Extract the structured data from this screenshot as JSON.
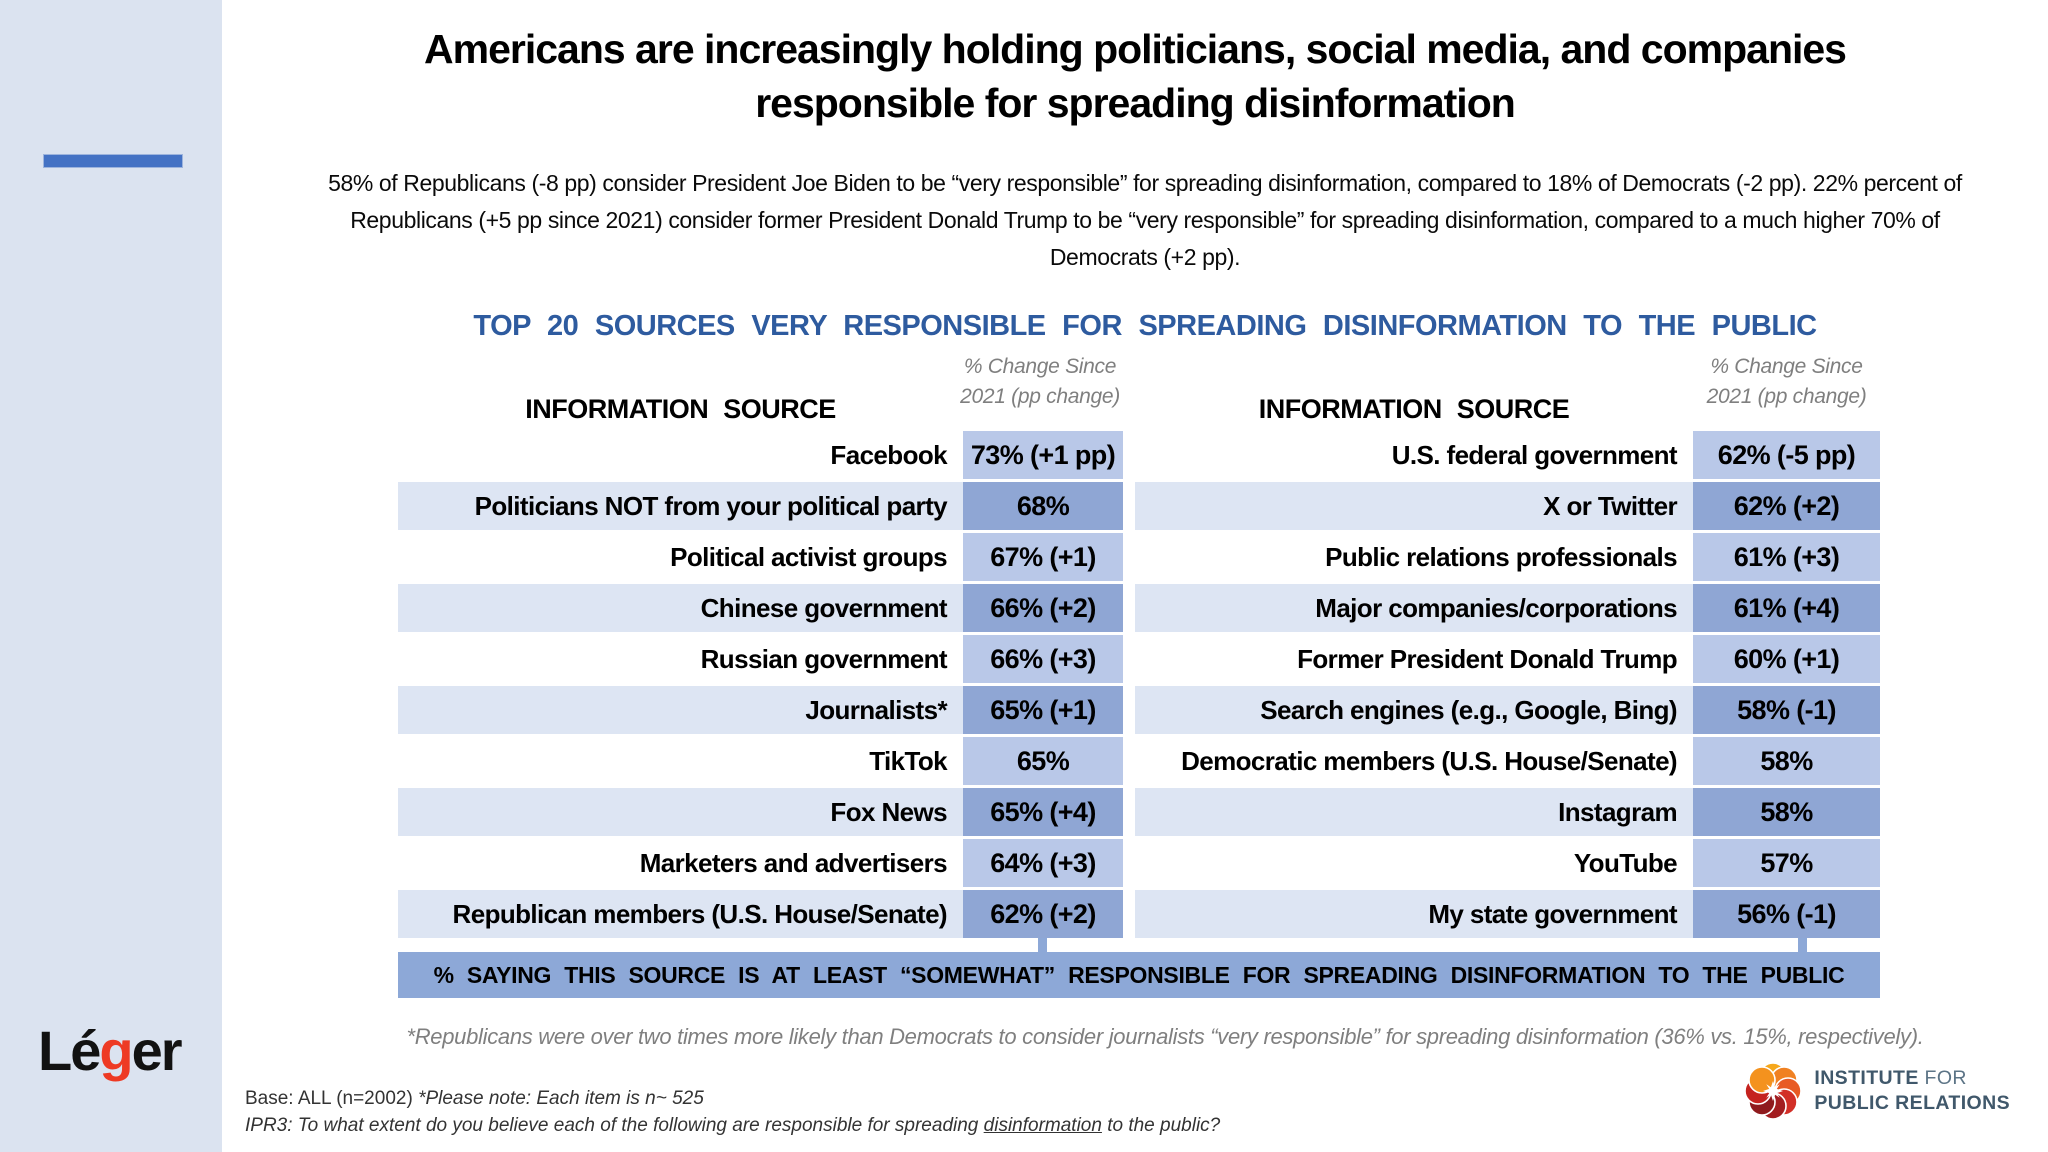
{
  "header": {
    "title_line1": "Americans are increasingly holding politicians, social media, and companies",
    "title_line2": "responsible for spreading disinformation",
    "subtitle": "58% of Republicans (-8 pp) consider President Joe Biden to be “very responsible” for spreading disinformation, compared to 18% of Democrats (-2 pp). 22% percent of Republicans (+5 pp since 2021) consider former President Donald Trump to be “very responsible” for spreading disinformation, compared to a much higher 70% of Democrats (+2 pp)."
  },
  "section": {
    "title": "TOP 20 SOURCES VERY RESPONSIBLE FOR SPREADING DISINFORMATION TO THE PUBLIC"
  },
  "table_headers": {
    "information_source": "INFORMATION SOURCE",
    "pct_change_line1": "% Change Since",
    "pct_change_line2": "2021 (pp change)"
  },
  "chart_data": {
    "type": "table",
    "title": "TOP 20 SOURCES VERY RESPONSIBLE FOR SPREADING DISINFORMATION TO THE PUBLIC",
    "columns": [
      "INFORMATION SOURCE",
      "% Change Since 2021 (pp change)"
    ],
    "left_rows": [
      {
        "source": "Facebook",
        "pct": 73,
        "change_pp": 1,
        "display": "73% (+1 pp)"
      },
      {
        "source": "Politicians NOT from your political party",
        "pct": 68,
        "change_pp": null,
        "display": "68%"
      },
      {
        "source": "Political activist groups",
        "pct": 67,
        "change_pp": 1,
        "display": "67% (+1)"
      },
      {
        "source": "Chinese government",
        "pct": 66,
        "change_pp": 2,
        "display": "66% (+2)"
      },
      {
        "source": "Russian government",
        "pct": 66,
        "change_pp": 3,
        "display": "66% (+3)"
      },
      {
        "source": "Journalists*",
        "pct": 65,
        "change_pp": 1,
        "display": "65% (+1)"
      },
      {
        "source": "TikTok",
        "pct": 65,
        "change_pp": null,
        "display": "65%"
      },
      {
        "source": "Fox News",
        "pct": 65,
        "change_pp": 4,
        "display": "65% (+4)"
      },
      {
        "source": "Marketers and advertisers",
        "pct": 64,
        "change_pp": 3,
        "display": "64% (+3)"
      },
      {
        "source": "Republican members (U.S. House/Senate)",
        "pct": 62,
        "change_pp": 2,
        "display": "62% (+2)"
      }
    ],
    "right_rows": [
      {
        "source": "U.S. federal government",
        "pct": 62,
        "change_pp": -5,
        "display": "62% (-5 pp)"
      },
      {
        "source": "X or Twitter",
        "pct": 62,
        "change_pp": 2,
        "display": "62% (+2)"
      },
      {
        "source": "Public relations professionals",
        "pct": 61,
        "change_pp": 3,
        "display": "61% (+3)"
      },
      {
        "source": "Major companies/corporations",
        "pct": 61,
        "change_pp": 4,
        "display": "61% (+4)"
      },
      {
        "source": "Former President Donald Trump",
        "pct": 60,
        "change_pp": 1,
        "display": "60% (+1)"
      },
      {
        "source": "Search engines (e.g., Google, Bing)",
        "pct": 58,
        "change_pp": -1,
        "display": "58% (-1)"
      },
      {
        "source": "Democratic members (U.S. House/Senate)",
        "pct": 58,
        "change_pp": null,
        "display": "58%"
      },
      {
        "source": "Instagram",
        "pct": 58,
        "change_pp": null,
        "display": "58%"
      },
      {
        "source": "YouTube",
        "pct": 57,
        "change_pp": null,
        "display": "57%"
      },
      {
        "source": "My state government",
        "pct": 56,
        "change_pp": -1,
        "display": "56% (-1)"
      }
    ],
    "footer_bar": "% SAYING THIS SOURCE IS AT LEAST “SOMEWHAT” RESPONSIBLE FOR SPREADING DISINFORMATION TO THE PUBLIC"
  },
  "footnote": "*Republicans were over two times more likely than Democrats to consider journalists “very responsible” for spreading disinformation (36% vs. 15%, respectively).",
  "base_notes": {
    "base_label": "Base: ALL (n=2002) ",
    "base_note_italic": "*Please note: Each item is n~ 525",
    "question_prefix": "IPR3: To what extent do you believe each of the following are responsible for spreading ",
    "question_underlined": "disinformation",
    "question_suffix": " to the public?"
  },
  "logos": {
    "leger": {
      "part1": "Lé",
      "part2": "g",
      "part3": "er"
    },
    "ipr": {
      "line1_strong": "INSTITUTE",
      "line1_light": " FOR",
      "line2": "PUBLIC RELATIONS"
    }
  },
  "colors": {
    "accent_blue": "#4472c4",
    "section_title_blue": "#2e5b9f",
    "sidebar_bg": "#dbe3f0",
    "row_alt_bg": "#dde5f3",
    "value_light_bg": "#b9c8e8",
    "value_dark_bg": "#8fa6d4",
    "footer_bar_bg": "#8da8d7",
    "leger_red": "#ee3a24",
    "ipr_text": "#40586b"
  }
}
